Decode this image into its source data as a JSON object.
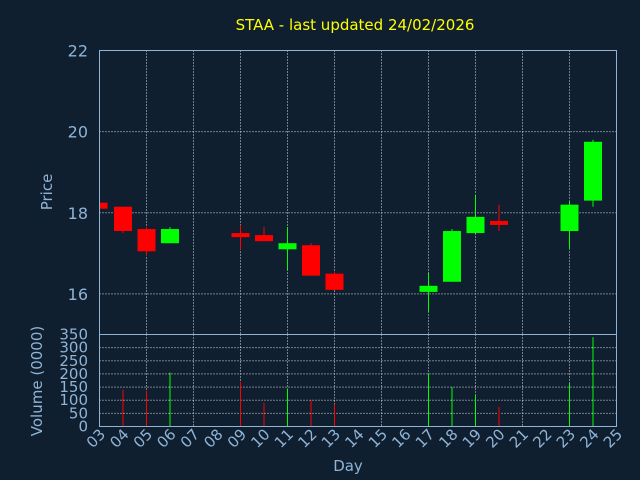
{
  "chart_data": {
    "type": "candlestick",
    "title": "STAA - last updated 24/02/2026",
    "xlabel": "Day",
    "ylabel": "Price",
    "volume_label": "Volume (0000)",
    "x_ticks": [
      "03",
      "04",
      "05",
      "06",
      "07",
      "08",
      "09",
      "10",
      "11",
      "12",
      "13",
      "14",
      "15",
      "16",
      "17",
      "18",
      "19",
      "20",
      "21",
      "22",
      "23",
      "24",
      "25"
    ],
    "price_ylim": [
      15,
      22
    ],
    "price_ticks": [
      16,
      18,
      20,
      22
    ],
    "volume_ylim": [
      0,
      350
    ],
    "volume_ticks": [
      0,
      50,
      100,
      150,
      200,
      250,
      300,
      350
    ],
    "grid": true,
    "colors": {
      "up": "#00ff00",
      "down": "#ff0000",
      "background": "#0f1f30",
      "title": "#ffff00",
      "axis": "#8fb4d6"
    },
    "candles": [
      {
        "day": "03",
        "open": 18.25,
        "high": 18.25,
        "low": 18.1,
        "close": 18.1,
        "volume": 0
      },
      {
        "day": "04",
        "open": 18.15,
        "high": 18.15,
        "low": 17.5,
        "close": 17.55,
        "volume": 140
      },
      {
        "day": "05",
        "open": 17.6,
        "high": 17.65,
        "low": 16.95,
        "close": 17.05,
        "volume": 135
      },
      {
        "day": "06",
        "open": 17.25,
        "high": 17.65,
        "low": 17.25,
        "close": 17.6,
        "volume": 205
      },
      {
        "day": "09",
        "open": 17.5,
        "high": 17.7,
        "low": 17.1,
        "close": 17.4,
        "volume": 170
      },
      {
        "day": "10",
        "open": 17.45,
        "high": 17.65,
        "low": 17.3,
        "close": 17.3,
        "volume": 90
      },
      {
        "day": "11",
        "open": 17.1,
        "high": 17.65,
        "low": 16.6,
        "close": 17.25,
        "volume": 145
      },
      {
        "day": "12",
        "open": 17.2,
        "high": 17.25,
        "low": 16.45,
        "close": 16.45,
        "volume": 100
      },
      {
        "day": "13",
        "open": 16.5,
        "high": 16.55,
        "low": 16.1,
        "close": 16.1,
        "volume": 85
      },
      {
        "day": "17",
        "open": 16.05,
        "high": 16.5,
        "low": 15.55,
        "close": 16.2,
        "volume": 200
      },
      {
        "day": "18",
        "open": 16.3,
        "high": 17.6,
        "low": 16.3,
        "close": 17.55,
        "volume": 150
      },
      {
        "day": "19",
        "open": 17.5,
        "high": 18.45,
        "low": 17.5,
        "close": 17.9,
        "volume": 120
      },
      {
        "day": "20",
        "open": 17.8,
        "high": 18.2,
        "low": 17.55,
        "close": 17.7,
        "volume": 75
      },
      {
        "day": "23",
        "open": 17.55,
        "high": 18.3,
        "low": 17.1,
        "close": 18.2,
        "volume": 165
      },
      {
        "day": "24",
        "open": 18.3,
        "high": 19.8,
        "low": 18.15,
        "close": 19.75,
        "volume": 340
      }
    ]
  }
}
